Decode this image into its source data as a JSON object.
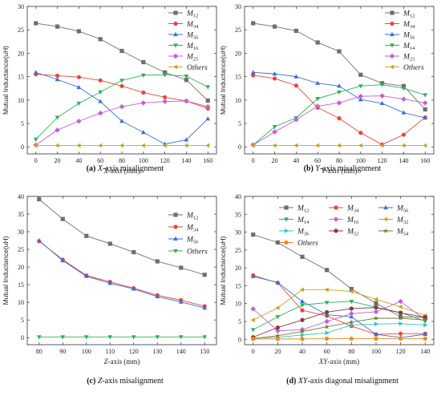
{
  "chart_data": [
    {
      "type": "line",
      "caption_letter": "(a)",
      "caption_italic": "X",
      "caption_rest": "-axis misalignment",
      "xlabel_italic": "X",
      "xlabel_rest": "-axis  (mm)",
      "ylabel": "Mutual Inductance(uH)",
      "x": [
        0,
        20,
        40,
        60,
        80,
        100,
        120,
        140,
        160
      ],
      "xlim": [
        -8,
        168
      ],
      "ylim": [
        -1.5,
        30
      ],
      "yticks": [
        0,
        5,
        10,
        15,
        20,
        25,
        30
      ],
      "legend_position": "top-right",
      "series": [
        {
          "name": "M",
          "sub": "12",
          "color": "#6e6e6e",
          "marker": "square",
          "values": [
            26.4,
            25.7,
            24.7,
            23.0,
            20.5,
            18.1,
            15.9,
            14.3,
            9.9
          ]
        },
        {
          "name": "M",
          "sub": "34",
          "color": "#e8463b",
          "marker": "circle",
          "values": [
            15.5,
            15.2,
            14.9,
            14.2,
            13.0,
            11.6,
            10.6,
            9.8,
            8.2
          ]
        },
        {
          "name": "M",
          "sub": "56",
          "color": "#3b6fd4",
          "marker": "triangle-up",
          "values": [
            15.9,
            14.4,
            12.7,
            9.7,
            5.5,
            3.1,
            0.6,
            1.5,
            6.0
          ]
        },
        {
          "name": "M",
          "sub": "16",
          "color": "#2eb05a",
          "marker": "triangle-down",
          "values": [
            1.6,
            6.3,
            9.3,
            11.7,
            14.2,
            15.3,
            15.4,
            15.1,
            12.8
          ]
        },
        {
          "name": "M",
          "sub": "25",
          "color": "#c061d6",
          "marker": "diamond",
          "values": [
            0.4,
            3.6,
            5.5,
            7.2,
            8.6,
            9.4,
            9.7,
            9.8,
            8.6
          ]
        },
        {
          "name": "Others",
          "sub": "",
          "color": "#c9a227",
          "marker": "triangle-left",
          "values": [
            0.3,
            0.3,
            0.3,
            0.3,
            0.3,
            0.3,
            0.3,
            0.3,
            0.3
          ]
        }
      ]
    },
    {
      "type": "line",
      "caption_letter": "(b)",
      "caption_italic": "Y",
      "caption_rest": "-axis misalignment",
      "xlabel_italic": "Y",
      "xlabel_rest": "-axis  (mm)",
      "ylabel": "Mutual Inductance(uH)",
      "x": [
        0,
        20,
        40,
        60,
        80,
        100,
        120,
        140,
        160
      ],
      "xlim": [
        -8,
        168
      ],
      "ylim": [
        -1.5,
        30
      ],
      "yticks": [
        0,
        5,
        10,
        15,
        20,
        25,
        30
      ],
      "legend_position": "top-right",
      "series": [
        {
          "name": "M",
          "sub": "12",
          "color": "#6e6e6e",
          "marker": "square",
          "values": [
            26.4,
            25.7,
            24.8,
            22.3,
            20.4,
            15.4,
            13.6,
            13.0,
            8.0
          ]
        },
        {
          "name": "M",
          "sub": "34",
          "color": "#e8463b",
          "marker": "circle",
          "values": [
            15.3,
            14.6,
            13.1,
            8.4,
            6.1,
            3.0,
            0.5,
            2.6,
            6.3
          ]
        },
        {
          "name": "M",
          "sub": "56",
          "color": "#3b6fd4",
          "marker": "triangle-up",
          "values": [
            15.9,
            15.6,
            15.0,
            13.6,
            13.0,
            10.1,
            9.3,
            7.3,
            6.2
          ]
        },
        {
          "name": "M",
          "sub": "14",
          "color": "#2eb05a",
          "marker": "triangle-down",
          "values": [
            0.4,
            4.3,
            6.2,
            10.3,
            11.7,
            13.0,
            13.3,
            12.5,
            11.1
          ]
        },
        {
          "name": "M",
          "sub": "23",
          "color": "#c061d6",
          "marker": "diamond",
          "values": [
            0.4,
            3.2,
            5.8,
            8.7,
            9.4,
            10.8,
            10.9,
            10.2,
            9.4
          ]
        },
        {
          "name": "Others",
          "sub": "",
          "color": "#c9a227",
          "marker": "triangle-left",
          "values": [
            0.3,
            0.3,
            0.3,
            0.3,
            0.3,
            0.3,
            0.3,
            0.3,
            0.3
          ]
        }
      ]
    },
    {
      "type": "line",
      "caption_letter": "(c)",
      "caption_italic": "Z",
      "caption_rest": "-axis misalignment",
      "xlabel_italic": "Z",
      "xlabel_rest": "-axis  (mm)",
      "ylabel": "Mutual Inductance(uH)",
      "x": [
        80,
        90,
        100,
        110,
        120,
        130,
        140,
        150
      ],
      "xlim": [
        75,
        155
      ],
      "ylim": [
        -2,
        40
      ],
      "yticks": [
        0,
        5,
        10,
        15,
        20,
        25,
        30,
        35,
        40
      ],
      "legend_position": "top-right",
      "series": [
        {
          "name": "M",
          "sub": "12",
          "color": "#6e6e6e",
          "marker": "square",
          "values": [
            39.2,
            33.6,
            28.8,
            26.6,
            24.2,
            21.6,
            19.8,
            17.8
          ]
        },
        {
          "name": "M",
          "sub": "34",
          "color": "#e8463b",
          "marker": "circle",
          "values": [
            27.3,
            22.1,
            17.6,
            15.8,
            14.0,
            12.0,
            10.6,
            8.9
          ]
        },
        {
          "name": "M",
          "sub": "56",
          "color": "#3b6fd4",
          "marker": "triangle-up",
          "values": [
            27.5,
            21.8,
            17.4,
            15.4,
            13.8,
            11.6,
            10.1,
            8.4
          ]
        },
        {
          "name": "Others",
          "sub": "",
          "color": "#2eb05a",
          "marker": "triangle-down",
          "values": [
            0.2,
            0.2,
            0.2,
            0.2,
            0.2,
            0.2,
            0.2,
            0.2
          ]
        }
      ]
    },
    {
      "type": "line",
      "caption_letter": "(d)",
      "caption_italic": "XY",
      "caption_rest": "-axis diagonal misalignment",
      "xlabel_italic": "XY",
      "xlabel_rest": "-axis  (mm)",
      "ylabel": "Mutual Inductance(uH)",
      "x": [
        0,
        20,
        40,
        60,
        80,
        100,
        120,
        140
      ],
      "xlim": [
        -7,
        147
      ],
      "ylim": [
        -1.5,
        40
      ],
      "yticks": [
        0,
        5,
        10,
        15,
        20,
        25,
        30,
        35,
        40
      ],
      "legend_position": "top",
      "series": [
        {
          "name": "M",
          "sub": "12",
          "color": "#6e6e6e",
          "marker": "square",
          "values": [
            29.3,
            27.1,
            23.1,
            19.4,
            14.1,
            10.1,
            6.3,
            6.1
          ]
        },
        {
          "name": "M",
          "sub": "34",
          "color": "#e8463b",
          "marker": "circle",
          "values": [
            17.9,
            15.8,
            8.1,
            6.6,
            3.7,
            1.4,
            1.6,
            1.6
          ]
        },
        {
          "name": "M",
          "sub": "56",
          "color": "#3b6fd4",
          "marker": "triangle-up",
          "values": [
            17.6,
            15.9,
            10.6,
            6.9,
            6.3,
            1.4,
            0.5,
            1.4
          ]
        },
        {
          "name": "M",
          "sub": "14",
          "color": "#2eb05a",
          "marker": "triangle-down",
          "values": [
            2.7,
            6.3,
            9.6,
            10.3,
            10.6,
            9.0,
            7.5,
            5.1
          ]
        },
        {
          "name": "M",
          "sub": "16",
          "color": "#c061d6",
          "marker": "diamond",
          "values": [
            8.5,
            2.4,
            2.7,
            5.0,
            7.2,
            7.7,
            10.6,
            5.5
          ]
        },
        {
          "name": "M",
          "sub": "32",
          "color": "#c9a227",
          "marker": "triangle-left",
          "values": [
            5.4,
            8.8,
            13.9,
            13.9,
            13.4,
            11.2,
            9.1,
            6.7
          ]
        },
        {
          "name": "M",
          "sub": "36",
          "color": "#2fc4c4",
          "marker": "triangle-right",
          "values": [
            0.3,
            0.6,
            1.2,
            1.8,
            4.0,
            4.3,
            4.4,
            4.0
          ]
        },
        {
          "name": "M",
          "sub": "52",
          "color": "#8b3a3a",
          "marker": "hexagon",
          "values": [
            0.6,
            3.3,
            5.4,
            7.6,
            8.6,
            8.9,
            7.4,
            6.2
          ]
        },
        {
          "name": "M",
          "sub": "54",
          "color": "#7a7a3a",
          "marker": "star",
          "values": [
            0.2,
            1.0,
            2.2,
            3.5,
            4.8,
            5.9,
            5.9,
            5.4
          ]
        },
        {
          "name": "Others",
          "sub": "",
          "color": "#f08a1c",
          "marker": "circle",
          "values": [
            0.1,
            0.1,
            0.1,
            0.2,
            0.2,
            0.2,
            0.2,
            0.2
          ]
        }
      ]
    }
  ]
}
